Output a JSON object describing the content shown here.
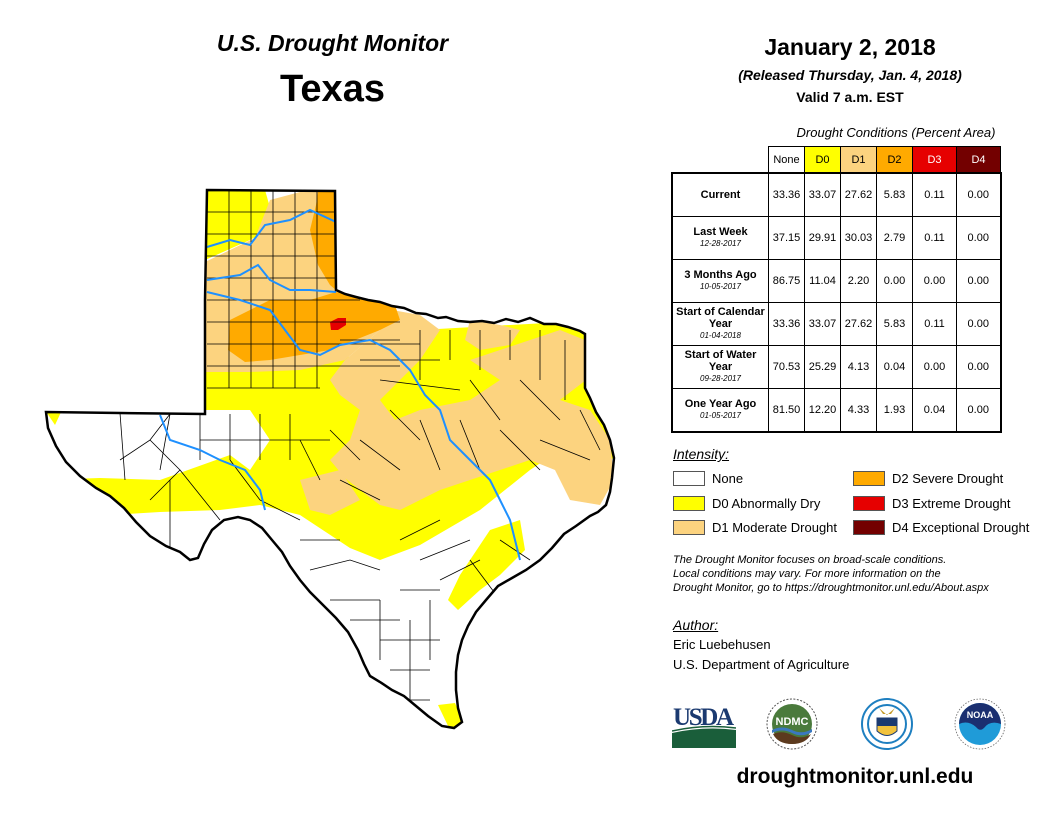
{
  "header": {
    "title": "U.S. Drought Monitor",
    "region": "Texas",
    "date": "January 2, 2018",
    "released": "(Released Thursday, Jan. 4, 2018)",
    "valid": "Valid 7 a.m. EST"
  },
  "table": {
    "title": "Drought Conditions (Percent Area)",
    "columns": [
      {
        "label": "None",
        "color": "#ffffff",
        "text_color": "#000000"
      },
      {
        "label": "D0",
        "color": "#ffff00",
        "text_color": "#000000"
      },
      {
        "label": "D1",
        "color": "#fcd37f",
        "text_color": "#000000"
      },
      {
        "label": "D2",
        "color": "#ffaa00",
        "text_color": "#000000"
      },
      {
        "label": "D3",
        "color": "#e60000",
        "text_color": "#ffffff"
      },
      {
        "label": "D4",
        "color": "#730000",
        "text_color": "#ffffff"
      }
    ],
    "rows": [
      {
        "label": "Current",
        "date": "",
        "values": [
          "33.36",
          "33.07",
          "27.62",
          "5.83",
          "0.11",
          "0.00"
        ]
      },
      {
        "label": "Last Week",
        "date": "12-28-2017",
        "values": [
          "37.15",
          "29.91",
          "30.03",
          "2.79",
          "0.11",
          "0.00"
        ]
      },
      {
        "label": "3 Months Ago",
        "date": "10-05-2017",
        "values": [
          "86.75",
          "11.04",
          "2.20",
          "0.00",
          "0.00",
          "0.00"
        ]
      },
      {
        "label": "Start of Calendar Year",
        "date": "01-04-2018",
        "values": [
          "33.36",
          "33.07",
          "27.62",
          "5.83",
          "0.11",
          "0.00"
        ]
      },
      {
        "label": "Start of Water Year",
        "date": "09-28-2017",
        "values": [
          "70.53",
          "25.29",
          "4.13",
          "0.04",
          "0.00",
          "0.00"
        ]
      },
      {
        "label": "One Year Ago",
        "date": "01-05-2017",
        "values": [
          "81.50",
          "12.20",
          "4.33",
          "1.93",
          "0.04",
          "0.00"
        ]
      }
    ]
  },
  "legend": {
    "title": "Intensity:",
    "items": [
      {
        "label": "None",
        "color": "#ffffff"
      },
      {
        "label": "D0 Abnormally Dry",
        "color": "#ffff00"
      },
      {
        "label": "D1 Moderate Drought",
        "color": "#fcd37f"
      },
      {
        "label": "D2 Severe Drought",
        "color": "#ffaa00"
      },
      {
        "label": "D3 Extreme Drought",
        "color": "#e60000"
      },
      {
        "label": "D4 Exceptional Drought",
        "color": "#730000"
      }
    ]
  },
  "note": {
    "line1": "The Drought Monitor focuses on broad-scale conditions.",
    "line2": "Local conditions may vary. For more information on the",
    "line3": "Drought Monitor, go to https://droughtmonitor.unl.edu/About.aspx"
  },
  "author": {
    "heading": "Author:",
    "name": "Eric Luebehusen",
    "org": "U.S. Department of Agriculture"
  },
  "logos": {
    "usda": "USDA",
    "ndmc": "NDMC",
    "noaa": "NOAA"
  },
  "footer": {
    "url": "droughtmonitor.unl.edu"
  },
  "map_colors": {
    "none": "#ffffff",
    "d0": "#ffff00",
    "d1": "#fcd37f",
    "d2": "#ffaa00",
    "d3": "#e60000",
    "river": "#1e90ff",
    "border": "#000000"
  }
}
